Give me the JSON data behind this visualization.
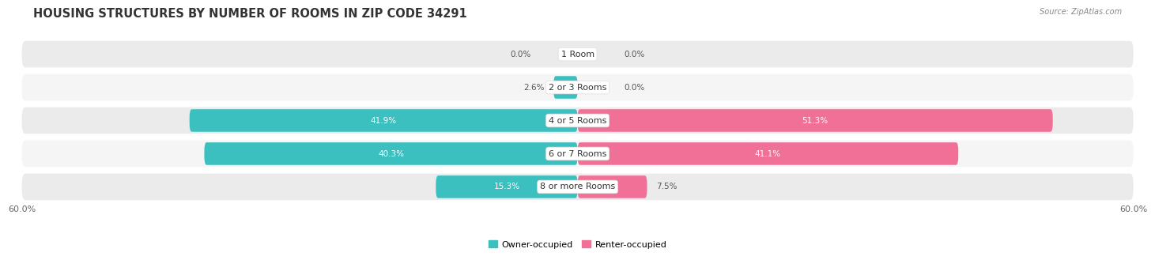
{
  "title": "HOUSING STRUCTURES BY NUMBER OF ROOMS IN ZIP CODE 34291",
  "source": "Source: ZipAtlas.com",
  "categories": [
    "1 Room",
    "2 or 3 Rooms",
    "4 or 5 Rooms",
    "6 or 7 Rooms",
    "8 or more Rooms"
  ],
  "owner_values": [
    0.0,
    2.6,
    41.9,
    40.3,
    15.3
  ],
  "renter_values": [
    0.0,
    0.0,
    51.3,
    41.1,
    7.5
  ],
  "max_value": 60.0,
  "owner_color": "#3BBFBF",
  "renter_color": "#F07098",
  "row_bg_color": "#EBEBEB",
  "row_bg_alt_color": "#F5F5F5",
  "title_fontsize": 10.5,
  "label_fontsize": 8,
  "value_fontsize": 7.5,
  "axis_label_fontsize": 8,
  "background_color": "#FFFFFF"
}
